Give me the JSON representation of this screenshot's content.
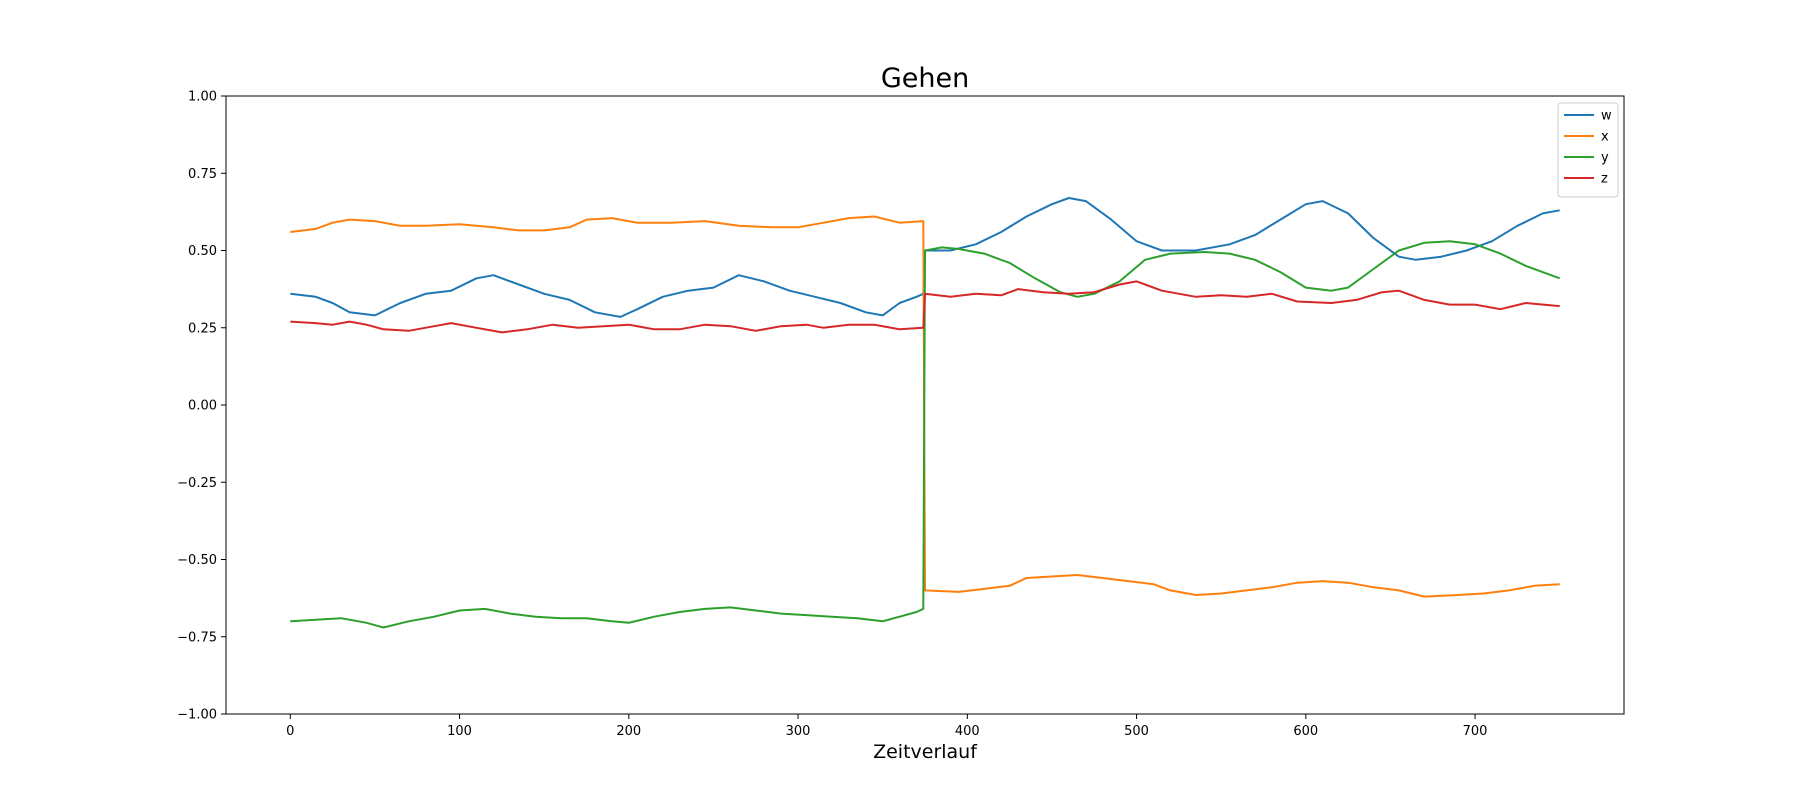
{
  "chart_data": {
    "type": "line",
    "title": "Gehen",
    "xlabel": "Zeitverlauf",
    "ylabel": "",
    "xlim": [
      -38,
      788
    ],
    "ylim": [
      -1.0,
      1.0
    ],
    "xticks": [
      0,
      100,
      200,
      300,
      400,
      500,
      600,
      700
    ],
    "yticks": [
      1.0,
      0.75,
      0.5,
      0.25,
      0.0,
      -0.25,
      -0.5,
      -0.75,
      -1.0
    ],
    "ytick_labels": [
      "1.00",
      "0.75",
      "0.50",
      "0.25",
      "0.00",
      "−0.25",
      "−0.50",
      "−0.75",
      "−1.00"
    ],
    "grid": false,
    "legend_position": "top-right",
    "series": [
      {
        "name": "w",
        "color": "#1f77b4",
        "points": [
          [
            0,
            0.36
          ],
          [
            15,
            0.35
          ],
          [
            25,
            0.33
          ],
          [
            35,
            0.3
          ],
          [
            50,
            0.29
          ],
          [
            65,
            0.33
          ],
          [
            80,
            0.36
          ],
          [
            95,
            0.37
          ],
          [
            110,
            0.41
          ],
          [
            120,
            0.42
          ],
          [
            135,
            0.39
          ],
          [
            150,
            0.36
          ],
          [
            165,
            0.34
          ],
          [
            180,
            0.3
          ],
          [
            195,
            0.285
          ],
          [
            205,
            0.31
          ],
          [
            220,
            0.35
          ],
          [
            235,
            0.37
          ],
          [
            250,
            0.38
          ],
          [
            265,
            0.42
          ],
          [
            280,
            0.4
          ],
          [
            295,
            0.37
          ],
          [
            310,
            0.35
          ],
          [
            325,
            0.33
          ],
          [
            340,
            0.3
          ],
          [
            350,
            0.29
          ],
          [
            360,
            0.33
          ],
          [
            370,
            0.35
          ],
          [
            374,
            0.36
          ],
          [
            375,
            0.5
          ],
          [
            390,
            0.5
          ],
          [
            405,
            0.52
          ],
          [
            420,
            0.56
          ],
          [
            435,
            0.61
          ],
          [
            450,
            0.65
          ],
          [
            460,
            0.67
          ],
          [
            470,
            0.66
          ],
          [
            485,
            0.6
          ],
          [
            500,
            0.53
          ],
          [
            515,
            0.5
          ],
          [
            535,
            0.5
          ],
          [
            555,
            0.52
          ],
          [
            570,
            0.55
          ],
          [
            585,
            0.6
          ],
          [
            600,
            0.65
          ],
          [
            610,
            0.66
          ],
          [
            625,
            0.62
          ],
          [
            640,
            0.54
          ],
          [
            655,
            0.48
          ],
          [
            665,
            0.47
          ],
          [
            680,
            0.48
          ],
          [
            695,
            0.5
          ],
          [
            710,
            0.53
          ],
          [
            725,
            0.58
          ],
          [
            740,
            0.62
          ],
          [
            750,
            0.63
          ]
        ]
      },
      {
        "name": "x",
        "color": "#ff7f0e",
        "points": [
          [
            0,
            0.56
          ],
          [
            15,
            0.57
          ],
          [
            25,
            0.59
          ],
          [
            35,
            0.6
          ],
          [
            50,
            0.595
          ],
          [
            65,
            0.58
          ],
          [
            80,
            0.58
          ],
          [
            100,
            0.585
          ],
          [
            120,
            0.575
          ],
          [
            135,
            0.565
          ],
          [
            150,
            0.565
          ],
          [
            165,
            0.575
          ],
          [
            175,
            0.6
          ],
          [
            190,
            0.605
          ],
          [
            205,
            0.59
          ],
          [
            225,
            0.59
          ],
          [
            245,
            0.595
          ],
          [
            265,
            0.58
          ],
          [
            285,
            0.575
          ],
          [
            300,
            0.575
          ],
          [
            315,
            0.59
          ],
          [
            330,
            0.605
          ],
          [
            345,
            0.61
          ],
          [
            360,
            0.59
          ],
          [
            374,
            0.595
          ],
          [
            375,
            -0.6
          ],
          [
            395,
            -0.605
          ],
          [
            410,
            -0.595
          ],
          [
            425,
            -0.585
          ],
          [
            435,
            -0.56
          ],
          [
            450,
            -0.555
          ],
          [
            465,
            -0.55
          ],
          [
            480,
            -0.56
          ],
          [
            495,
            -0.57
          ],
          [
            510,
            -0.58
          ],
          [
            520,
            -0.6
          ],
          [
            535,
            -0.615
          ],
          [
            550,
            -0.61
          ],
          [
            565,
            -0.6
          ],
          [
            580,
            -0.59
          ],
          [
            595,
            -0.575
          ],
          [
            610,
            -0.57
          ],
          [
            625,
            -0.575
          ],
          [
            640,
            -0.59
          ],
          [
            655,
            -0.6
          ],
          [
            670,
            -0.62
          ],
          [
            690,
            -0.615
          ],
          [
            705,
            -0.61
          ],
          [
            720,
            -0.6
          ],
          [
            735,
            -0.585
          ],
          [
            750,
            -0.58
          ]
        ]
      },
      {
        "name": "y",
        "color": "#2ca02c",
        "points": [
          [
            0,
            -0.7
          ],
          [
            15,
            -0.695
          ],
          [
            30,
            -0.69
          ],
          [
            45,
            -0.705
          ],
          [
            55,
            -0.72
          ],
          [
            70,
            -0.7
          ],
          [
            85,
            -0.685
          ],
          [
            100,
            -0.665
          ],
          [
            115,
            -0.66
          ],
          [
            130,
            -0.675
          ],
          [
            145,
            -0.685
          ],
          [
            160,
            -0.69
          ],
          [
            175,
            -0.69
          ],
          [
            190,
            -0.7
          ],
          [
            200,
            -0.705
          ],
          [
            215,
            -0.685
          ],
          [
            230,
            -0.67
          ],
          [
            245,
            -0.66
          ],
          [
            260,
            -0.655
          ],
          [
            275,
            -0.665
          ],
          [
            290,
            -0.675
          ],
          [
            305,
            -0.68
          ],
          [
            320,
            -0.685
          ],
          [
            335,
            -0.69
          ],
          [
            350,
            -0.7
          ],
          [
            360,
            -0.685
          ],
          [
            370,
            -0.67
          ],
          [
            374,
            -0.66
          ],
          [
            375,
            0.5
          ],
          [
            385,
            0.51
          ],
          [
            395,
            0.505
          ],
          [
            410,
            0.49
          ],
          [
            425,
            0.46
          ],
          [
            440,
            0.41
          ],
          [
            455,
            0.365
          ],
          [
            465,
            0.35
          ],
          [
            475,
            0.36
          ],
          [
            490,
            0.4
          ],
          [
            505,
            0.47
          ],
          [
            520,
            0.49
          ],
          [
            540,
            0.495
          ],
          [
            555,
            0.49
          ],
          [
            570,
            0.47
          ],
          [
            585,
            0.43
          ],
          [
            600,
            0.38
          ],
          [
            615,
            0.37
          ],
          [
            625,
            0.38
          ],
          [
            640,
            0.44
          ],
          [
            655,
            0.5
          ],
          [
            670,
            0.525
          ],
          [
            685,
            0.53
          ],
          [
            700,
            0.52
          ],
          [
            715,
            0.49
          ],
          [
            730,
            0.45
          ],
          [
            745,
            0.42
          ],
          [
            750,
            0.41
          ]
        ]
      },
      {
        "name": "z",
        "color": "#d62728",
        "points": [
          [
            0,
            0.27
          ],
          [
            15,
            0.265
          ],
          [
            25,
            0.26
          ],
          [
            35,
            0.27
          ],
          [
            45,
            0.26
          ],
          [
            55,
            0.245
          ],
          [
            70,
            0.24
          ],
          [
            85,
            0.255
          ],
          [
            95,
            0.265
          ],
          [
            110,
            0.25
          ],
          [
            125,
            0.235
          ],
          [
            140,
            0.245
          ],
          [
            155,
            0.26
          ],
          [
            170,
            0.25
          ],
          [
            185,
            0.255
          ],
          [
            200,
            0.26
          ],
          [
            215,
            0.245
          ],
          [
            230,
            0.245
          ],
          [
            245,
            0.26
          ],
          [
            260,
            0.255
          ],
          [
            275,
            0.24
          ],
          [
            290,
            0.255
          ],
          [
            305,
            0.26
          ],
          [
            315,
            0.25
          ],
          [
            330,
            0.26
          ],
          [
            345,
            0.26
          ],
          [
            360,
            0.245
          ],
          [
            374,
            0.25
          ],
          [
            375,
            0.36
          ],
          [
            390,
            0.35
          ],
          [
            405,
            0.36
          ],
          [
            420,
            0.355
          ],
          [
            430,
            0.375
          ],
          [
            445,
            0.365
          ],
          [
            460,
            0.36
          ],
          [
            475,
            0.365
          ],
          [
            490,
            0.39
          ],
          [
            500,
            0.4
          ],
          [
            515,
            0.37
          ],
          [
            535,
            0.35
          ],
          [
            550,
            0.355
          ],
          [
            565,
            0.35
          ],
          [
            580,
            0.36
          ],
          [
            595,
            0.335
          ],
          [
            615,
            0.33
          ],
          [
            630,
            0.34
          ],
          [
            645,
            0.365
          ],
          [
            655,
            0.37
          ],
          [
            670,
            0.34
          ],
          [
            685,
            0.325
          ],
          [
            700,
            0.325
          ],
          [
            715,
            0.31
          ],
          [
            730,
            0.33
          ],
          [
            750,
            0.32
          ]
        ]
      }
    ]
  }
}
